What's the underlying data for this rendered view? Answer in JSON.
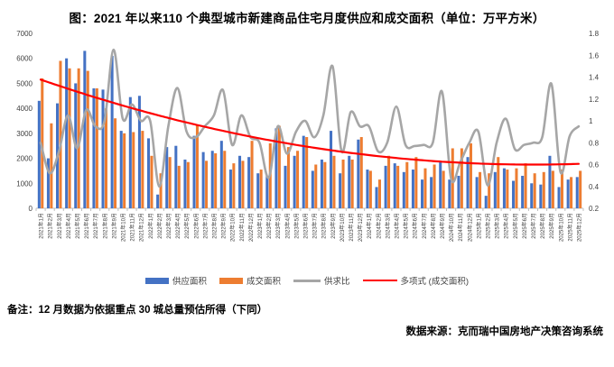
{
  "title": "图：2021 年以来110 个典型城市新建商品住宅月度供应和成交面积（单位：万平方米）",
  "note": "备注：12 月数据为依据重点 30 城总量预估所得（下同）",
  "source": "数据来源：克而瑞中国房地产决策咨询系统",
  "legend_labels": [
    "供应面积",
    "成交面积",
    "供求比",
    "多项式 (成交面积)"
  ],
  "colors": {
    "supply": "#4472C4",
    "transaction": "#ED7D31",
    "ratio": "#A6A6A6",
    "trend": "#FF0000",
    "axis": "#BFBFBF",
    "tick_text": "#404040"
  },
  "chart_data": {
    "type": "bar",
    "title": "2021年以来110个典型城市新建商品住宅月度供应和成交面积（万平方米）",
    "xlabel": "",
    "ylabel_left": "万平方米",
    "ylabel_right": "供求比",
    "left_axis": {
      "min": 0,
      "max": 7000,
      "step": 1000
    },
    "right_axis": {
      "min": 0.2,
      "max": 1.8,
      "step": 0.2
    },
    "grid": false,
    "legend_position": "bottom",
    "categories": [
      "2021年1月",
      "2021年2月",
      "2021年3月",
      "2021年4月",
      "2021年5月",
      "2021年6月",
      "2021年7月",
      "2021年8月",
      "2021年9月",
      "2021年10月",
      "2021年11月",
      "2021年12月",
      "2022年1月",
      "2022年2月",
      "2022年3月",
      "2022年4月",
      "2022年5月",
      "2022年6月",
      "2022年7月",
      "2022年8月",
      "2022年9月",
      "2022年10月",
      "2022年11月",
      "2022年12月",
      "2023年1月",
      "2023年2月",
      "2023年3月",
      "2023年4月",
      "2023年5月",
      "2023年6月",
      "2023年7月",
      "2023年8月",
      "2023年9月",
      "2023年10月",
      "2023年11月",
      "2023年12月",
      "2024年1月",
      "2024年2月",
      "2024年3月",
      "2024年4月",
      "2024年5月",
      "2024年6月",
      "2024年7月",
      "2024年8月",
      "2024年9月",
      "2024年10月",
      "2024年11月",
      "2024年12月",
      "2025年1月",
      "2025年2月",
      "2025年3月",
      "2025年4月",
      "2025年5月",
      "2025年6月",
      "2025年7月",
      "2025年8月",
      "2025年9月",
      "2025年10月",
      "2025年11月",
      "2025年12月"
    ],
    "series": [
      {
        "name": "供应面积",
        "type": "bar",
        "axis": "left",
        "color": "#4472C4",
        "values": [
          4300,
          2000,
          4200,
          6000,
          5000,
          6300,
          4800,
          4750,
          6100,
          3100,
          4450,
          4500,
          2800,
          550,
          2450,
          2500,
          1950,
          2900,
          2250,
          2300,
          2700,
          1550,
          2100,
          2050,
          1400,
          1300,
          3200,
          1700,
          2100,
          2900,
          1500,
          1950,
          3100,
          1400,
          2100,
          2750,
          1550,
          850,
          1700,
          1800,
          1450,
          1550,
          1150,
          1250,
          1850,
          1150,
          1300,
          2050,
          1250,
          500,
          1450,
          1600,
          1100,
          1300,
          1000,
          950,
          2100,
          850,
          1150,
          1250
        ]
      },
      {
        "name": "成交面积",
        "type": "bar",
        "axis": "left",
        "color": "#ED7D31",
        "values": [
          5200,
          3400,
          5900,
          5600,
          5600,
          5500,
          4800,
          4000,
          3600,
          3000,
          3050,
          3100,
          2100,
          1400,
          2050,
          1700,
          1850,
          3300,
          1900,
          2200,
          2300,
          1800,
          1900,
          2700,
          1550,
          2600,
          3300,
          2450,
          2300,
          2850,
          1750,
          1850,
          2100,
          1950,
          1950,
          2850,
          1500,
          1150,
          2100,
          1700,
          1850,
          2050,
          1600,
          1750,
          1500,
          2400,
          2400,
          2600,
          1450,
          1400,
          2050,
          1550,
          1600,
          1800,
          1400,
          1450,
          1500,
          1550,
          1250,
          1500
        ]
      },
      {
        "name": "供求比",
        "type": "line",
        "axis": "right",
        "color": "#A6A6A6",
        "values": [
          0.8,
          0.52,
          0.72,
          1.05,
          0.75,
          1.1,
          0.95,
          1.0,
          1.65,
          1.02,
          1.15,
          1.0,
          1.0,
          0.4,
          0.95,
          1.3,
          0.9,
          0.85,
          0.95,
          1.05,
          1.28,
          0.78,
          1.05,
          0.85,
          0.8,
          0.48,
          0.95,
          0.7,
          0.9,
          1.0,
          0.85,
          1.05,
          1.5,
          0.72,
          1.08,
          0.95,
          0.95,
          0.72,
          0.8,
          1.13,
          0.78,
          0.77,
          0.78,
          0.8,
          1.27,
          0.47,
          0.62,
          0.8,
          0.9,
          0.41,
          0.8,
          1.02,
          0.74,
          0.78,
          0.8,
          0.85,
          1.34,
          0.53,
          0.86,
          0.95
        ]
      },
      {
        "name": "多项式 (成交面积)",
        "type": "line",
        "axis": "left",
        "color": "#FF0000",
        "values": [
          5150,
          5025,
          4903,
          4783,
          4665,
          4550,
          4436,
          4326,
          4217,
          4111,
          4007,
          3906,
          3807,
          3710,
          3616,
          3523,
          3434,
          3346,
          3261,
          3178,
          3098,
          3020,
          2944,
          2871,
          2799,
          2731,
          2664,
          2600,
          2538,
          2479,
          2422,
          2367,
          2314,
          2264,
          2216,
          2171,
          2128,
          2087,
          2048,
          2012,
          1979,
          1947,
          1918,
          1891,
          1867,
          1844,
          1825,
          1807,
          1792,
          1779,
          1769,
          1760,
          1755,
          1751,
          1750,
          1751,
          1755,
          1760,
          1769,
          1779
        ]
      }
    ]
  }
}
